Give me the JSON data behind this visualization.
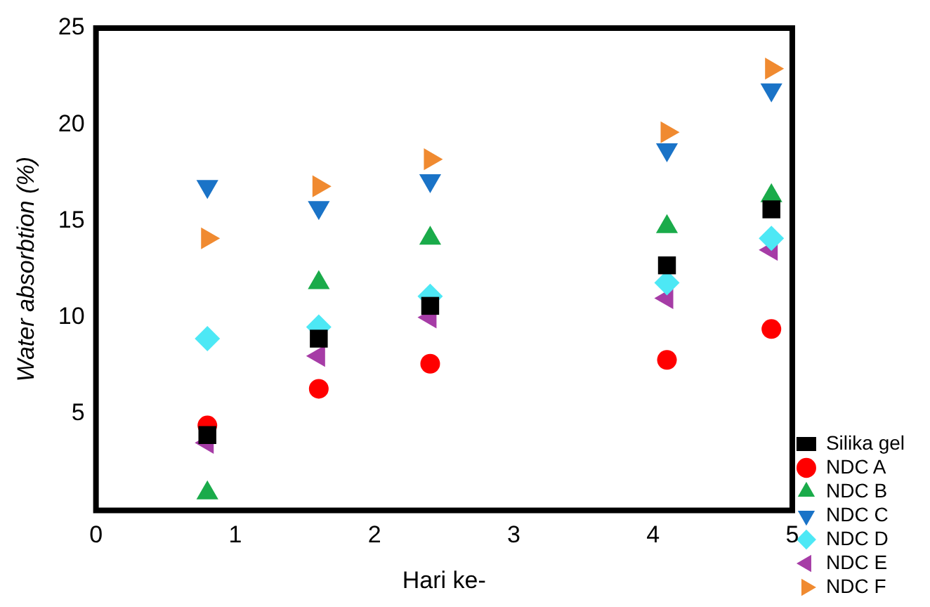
{
  "chart_data": {
    "type": "scatter",
    "xlabel": "Hari ke-",
    "ylabel": "Water absorbtion (%)",
    "x": [
      0.8,
      1.6,
      2.4,
      4.1,
      4.85
    ],
    "series": [
      {
        "name": "Silika gel",
        "color": "#000000",
        "marker": "square",
        "values": [
          3.9,
          8.9,
          10.6,
          12.7,
          15.6
        ]
      },
      {
        "name": "NDC A",
        "color": "#ff0000",
        "marker": "circle",
        "values": [
          4.4,
          6.3,
          7.6,
          7.8,
          9.4
        ]
      },
      {
        "name": "NDC B",
        "color": "#1aab4a",
        "marker": "triangle",
        "values": [
          0.9,
          11.8,
          14.1,
          14.7,
          16.3
        ]
      },
      {
        "name": "NDC C",
        "color": "#1a73c7",
        "marker": "triangle-down",
        "values": [
          16.8,
          15.7,
          17.1,
          18.7,
          21.8
        ]
      },
      {
        "name": "NDC D",
        "color": "#4de8f5",
        "marker": "diamond",
        "values": [
          8.9,
          9.5,
          11.1,
          11.8,
          14.1
        ]
      },
      {
        "name": "NDC E",
        "color": "#a63ca6",
        "marker": "triangle-left",
        "values": [
          3.5,
          8.0,
          10.0,
          11.0,
          13.5
        ]
      },
      {
        "name": "NDC F",
        "color": "#f08a30",
        "marker": "triangle-right",
        "values": [
          14.1,
          16.8,
          18.2,
          19.6,
          22.9
        ]
      }
    ],
    "xlim": [
      0,
      5
    ],
    "xticks": [
      0,
      1,
      2,
      3,
      4,
      5
    ],
    "ylim": [
      0,
      25
    ],
    "yticks": [
      5,
      10,
      15,
      20,
      25
    ],
    "grid": false,
    "legend": "right"
  }
}
